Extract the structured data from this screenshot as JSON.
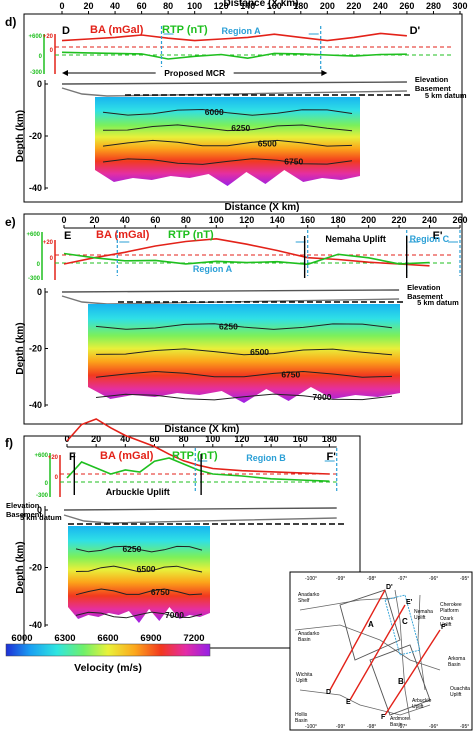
{
  "figure": {
    "colorbar": {
      "label": "Velocity (m/s)",
      "ticks": [
        6000,
        6300,
        6600,
        6900,
        7200
      ]
    },
    "map": {
      "lon_ticks": [
        "-100°",
        "-99°",
        "-98°",
        "-97°",
        "-96°",
        "-95°"
      ],
      "labels": [
        "Anadarko Shelf",
        "Anadarko Basin",
        "Wichita Uplift",
        "Hollis Basin",
        "Nemaha Uplift",
        "Cherokee Platform",
        "Ozark Uplift",
        "Arkoma Basin",
        "Ouachita Uplift",
        "Ardmore Basin",
        "Arbuckle Uplift"
      ],
      "regions": [
        "A",
        "B",
        "C"
      ],
      "profile_ends": [
        "D",
        "D'",
        "E",
        "E'",
        "F",
        "F'"
      ]
    }
  },
  "chart_data": [
    {
      "panel": "d)",
      "type": "line",
      "xlabel": "Distance (X km)",
      "xlim": [
        0,
        300
      ],
      "xticks": [
        0,
        20,
        40,
        60,
        80,
        100,
        120,
        140,
        160,
        180,
        200,
        220,
        240,
        260,
        280,
        300
      ],
      "depth_label": "Depth (km)",
      "depth_ticks": [
        0,
        -20,
        -40
      ],
      "ends": [
        "D",
        "D'"
      ],
      "series": [
        {
          "name": "BA (mGal)",
          "color": "#e32219",
          "x": [
            0,
            20,
            40,
            60,
            80,
            100,
            120,
            140,
            160,
            180,
            200,
            220,
            240,
            260
          ],
          "values": [
            8,
            10,
            12,
            15,
            11,
            8,
            10,
            12,
            16,
            12,
            8,
            12,
            17,
            14
          ]
        },
        {
          "name": "RTP (nT)",
          "color": "#1fbf1f",
          "x": [
            0,
            20,
            40,
            60,
            80,
            100,
            120,
            140,
            160,
            180,
            200,
            220,
            240,
            260
          ],
          "values": [
            100,
            80,
            60,
            40,
            -150,
            -50,
            20,
            -120,
            60,
            40,
            0,
            -40,
            20,
            30
          ]
        }
      ],
      "ba_axis": {
        "ticks": [
          "+20",
          "0"
        ]
      },
      "rtp_axis": {
        "ticks": [
          "+600",
          "0",
          "-300"
        ]
      },
      "region_a": {
        "label": "Region A",
        "x": [
          75,
          195
        ]
      },
      "uplift_label": "",
      "mcr_label": "Proposed MCR",
      "mcr_range": [
        0,
        200
      ],
      "legend_labels": {
        "elevation": "Elevation",
        "basement": "Basement",
        "datum": "5 km datum"
      },
      "contours": [
        {
          "label": "6000",
          "depth": 7
        },
        {
          "label": "6250",
          "depth": 13
        },
        {
          "label": "6500",
          "depth": 19
        },
        {
          "label": "6750",
          "depth": 26
        }
      ]
    },
    {
      "panel": "e)",
      "type": "line",
      "xlabel": "Distance (X km)",
      "xlim": [
        0,
        260
      ],
      "xticks": [
        0,
        20,
        40,
        60,
        80,
        100,
        120,
        140,
        160,
        180,
        200,
        220,
        240,
        260
      ],
      "depth_label": "Depth (km)",
      "depth_ticks": [
        0,
        -20,
        -40
      ],
      "ends": [
        "E",
        "E'"
      ],
      "series": [
        {
          "name": "BA (mGal)",
          "color": "#e32219",
          "x": [
            0,
            20,
            40,
            60,
            80,
            100,
            120,
            140,
            160,
            180,
            200,
            220,
            240
          ],
          "values": [
            -10,
            -3,
            3,
            10,
            15,
            18,
            12,
            5,
            -3,
            -5,
            -8,
            -10,
            -12
          ]
        },
        {
          "name": "RTP (nT)",
          "color": "#1fbf1f",
          "x": [
            0,
            20,
            40,
            60,
            80,
            100,
            120,
            140,
            160,
            180,
            200,
            220,
            240
          ],
          "values": [
            220,
            120,
            50,
            60,
            -20,
            40,
            10,
            30,
            -30,
            200,
            120,
            -20,
            10
          ]
        }
      ],
      "ba_axis": {
        "ticks": [
          "+20",
          "0"
        ]
      },
      "rtp_axis": {
        "ticks": [
          "+600",
          "0",
          "-300"
        ]
      },
      "region_a": {
        "label": "Region A",
        "x": [
          35,
          160
        ]
      },
      "region_c": {
        "label": "Region C",
        "x": [
          225,
          260
        ]
      },
      "uplift_label": "Nemaha Uplift",
      "legend_labels": {
        "elevation": "Elevation",
        "basement": "Basement",
        "datum": "5 km datum"
      },
      "contours": [
        {
          "label": "6250",
          "depth": 9
        },
        {
          "label": "6500",
          "depth": 18
        },
        {
          "label": "6750",
          "depth": 26
        },
        {
          "label": "7000",
          "depth": 34
        }
      ]
    },
    {
      "panel": "f)",
      "type": "line",
      "xlabel": "Distance (X km)",
      "xlim": [
        0,
        190
      ],
      "xticks": [
        0,
        20,
        40,
        60,
        80,
        100,
        120,
        140,
        160,
        180
      ],
      "depth_label": "Depth (km)",
      "depth_ticks": [
        0,
        -20,
        -40
      ],
      "ends": [
        "F",
        "F'"
      ],
      "series": [
        {
          "name": "BA (mGal)",
          "color": "#e32219",
          "x": [
            0,
            10,
            20,
            30,
            40,
            50,
            60,
            70,
            80,
            90,
            100,
            120,
            140,
            160,
            180
          ],
          "values": [
            30,
            45,
            50,
            42,
            35,
            30,
            25,
            18,
            12,
            8,
            5,
            3,
            2,
            1,
            0
          ]
        },
        {
          "name": "RTP (nT)",
          "color": "#1fbf1f",
          "x": [
            0,
            10,
            20,
            30,
            40,
            50,
            60,
            70,
            80,
            90,
            100,
            120,
            140,
            160,
            180
          ],
          "values": [
            100,
            500,
            350,
            200,
            300,
            250,
            520,
            600,
            450,
            300,
            200,
            150,
            80,
            50,
            20
          ]
        }
      ],
      "ba_axis": {
        "ticks": [
          "+20",
          "0"
        ]
      },
      "rtp_axis": {
        "ticks": [
          "+600",
          "0",
          "-300"
        ]
      },
      "region_b": {
        "label": "Region B",
        "x": [
          88,
          185
        ]
      },
      "uplift_label": "Arbuckle Uplift",
      "legend_labels": {
        "elevation": "Elevation",
        "basement": "Basement",
        "datum": "5 km datum"
      },
      "contours": [
        {
          "label": "6250",
          "depth": 9
        },
        {
          "label": "6500",
          "depth": 16
        },
        {
          "label": "6750",
          "depth": 24
        },
        {
          "label": "7000",
          "depth": 32
        }
      ]
    }
  ]
}
